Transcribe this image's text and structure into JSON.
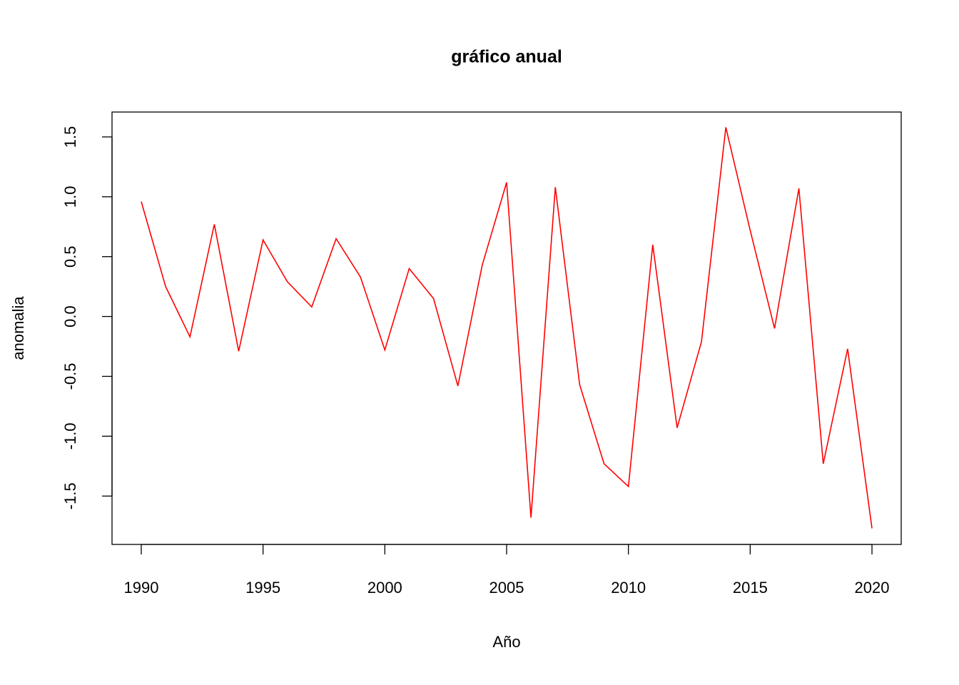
{
  "chart_data": {
    "type": "line",
    "title": "gráfico anual",
    "x_label": "Año",
    "y_label": "anomalia",
    "x": [
      1990,
      1991,
      1992,
      1993,
      1994,
      1995,
      1996,
      1997,
      1998,
      1999,
      2000,
      2001,
      2002,
      2003,
      2004,
      2005,
      2006,
      2007,
      2008,
      2009,
      2010,
      2011,
      2012,
      2013,
      2014,
      2015,
      2016,
      2017,
      2018,
      2019,
      2020
    ],
    "series": [
      {
        "name": "anomalia",
        "color": "#ff0000",
        "values": [
          0.96,
          0.25,
          -0.17,
          0.77,
          -0.29,
          0.64,
          0.29,
          0.08,
          0.65,
          0.33,
          -0.28,
          0.4,
          0.15,
          -0.58,
          0.43,
          1.12,
          -1.68,
          1.08,
          -0.57,
          -1.23,
          -1.42,
          0.6,
          -0.93,
          -0.21,
          1.58,
          0.72,
          -0.1,
          1.07,
          -1.23,
          -0.27,
          -1.77
        ]
      }
    ],
    "xlim": [
      1988.8,
      2021.2
    ],
    "xticks": [
      1990,
      1995,
      2000,
      2005,
      2010,
      2015,
      2020
    ],
    "ylim": [
      -1.904,
      1.708
    ],
    "yticks": [
      -1.5,
      {
        "value": -1.0,
        "label": "-1.0"
      },
      -0.5,
      {
        "value": 0.0,
        "label": "0.0"
      },
      0.5,
      {
        "value": 1.0,
        "label": "1.0"
      },
      1.5
    ]
  }
}
